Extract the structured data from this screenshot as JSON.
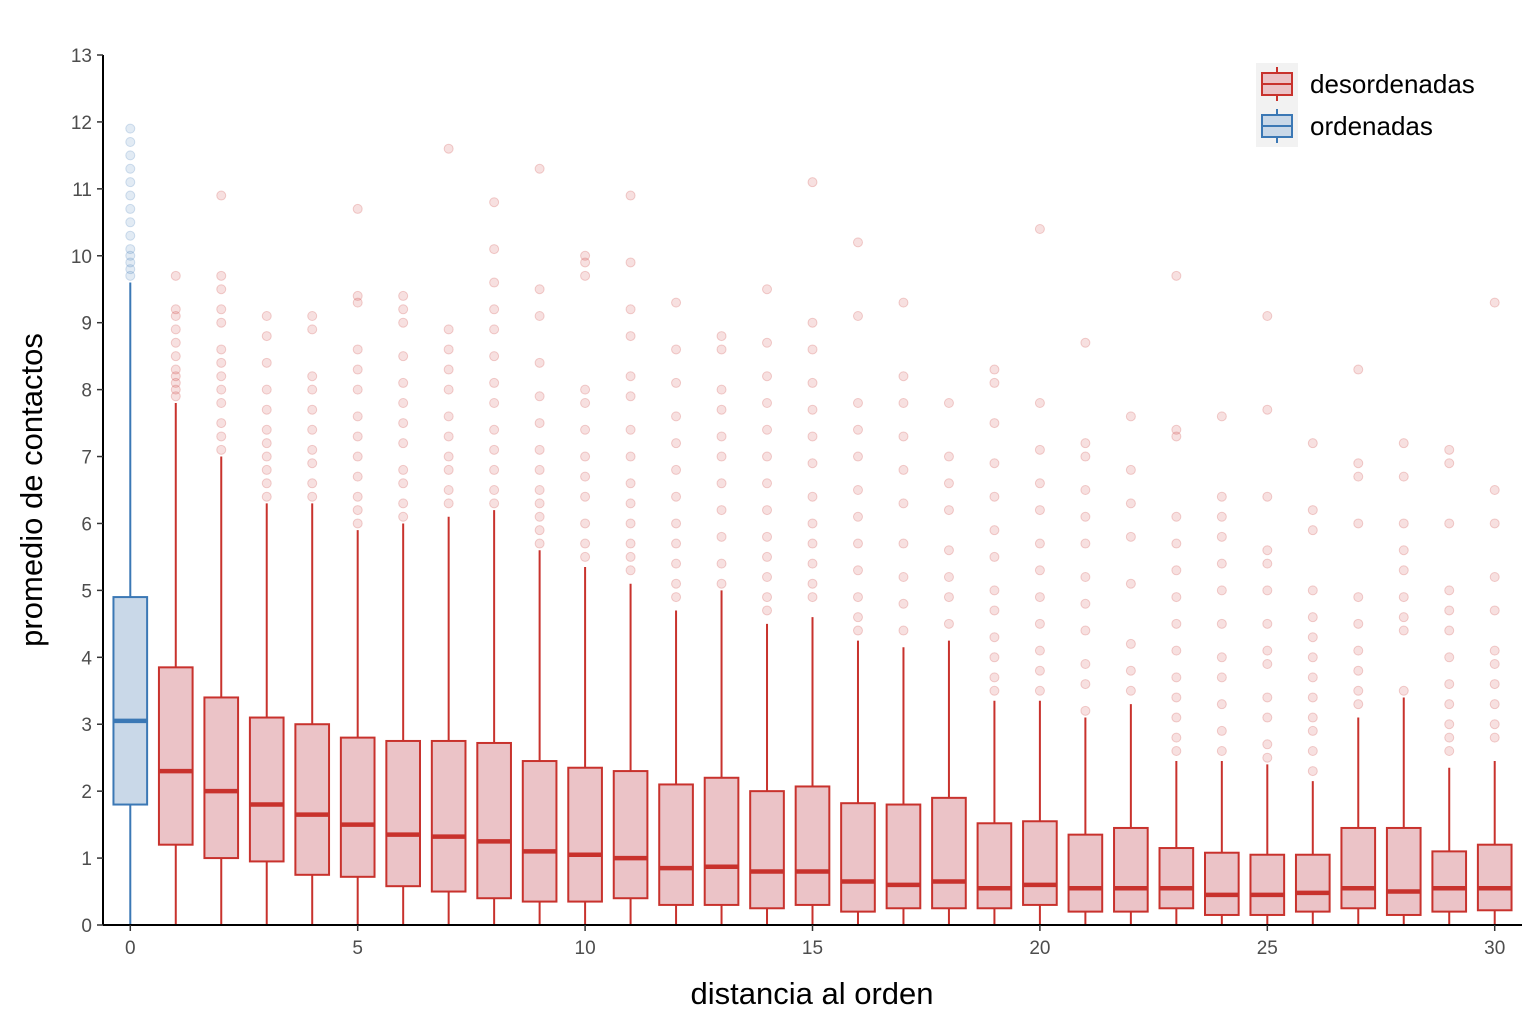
{
  "chart_data": {
    "type": "box",
    "xlabel": "distancia al orden",
    "ylabel": "promedio de contactos",
    "xlim": [
      -0.6,
      30.6
    ],
    "ylim": [
      0,
      13
    ],
    "x_ticks": [
      0,
      5,
      10,
      15,
      20,
      25,
      30
    ],
    "y_ticks": [
      0,
      1,
      2,
      3,
      4,
      5,
      6,
      7,
      8,
      9,
      10,
      11,
      12,
      13
    ],
    "grid": false,
    "legend_position": "top-right",
    "series": [
      {
        "name": "desordenadas",
        "color": "#c8322d",
        "fill": "#ebc3c7",
        "boxes": [
          {
            "x": 1,
            "q1": 1.2,
            "median": 2.3,
            "q3": 3.85,
            "whisker_low": 0,
            "whisker_high": 7.8,
            "outliers": [
              7.9,
              8.0,
              8.1,
              8.2,
              8.3,
              8.5,
              8.7,
              8.9,
              9.1,
              9.2,
              9.7
            ]
          },
          {
            "x": 2,
            "q1": 1.0,
            "median": 2.0,
            "q3": 3.4,
            "whisker_low": 0,
            "whisker_high": 7.0,
            "outliers": [
              7.1,
              7.3,
              7.5,
              7.8,
              8.0,
              8.2,
              8.4,
              8.6,
              9.0,
              9.2,
              9.5,
              9.7,
              10.9
            ]
          },
          {
            "x": 3,
            "q1": 0.95,
            "median": 1.8,
            "q3": 3.1,
            "whisker_low": 0,
            "whisker_high": 6.3,
            "outliers": [
              6.4,
              6.6,
              6.8,
              7.0,
              7.2,
              7.4,
              7.7,
              8.0,
              8.4,
              8.8,
              9.1
            ]
          },
          {
            "x": 4,
            "q1": 0.75,
            "median": 1.65,
            "q3": 3.0,
            "whisker_low": 0,
            "whisker_high": 6.3,
            "outliers": [
              6.4,
              6.6,
              6.9,
              7.1,
              7.4,
              7.7,
              8.0,
              8.2,
              8.9,
              9.1
            ]
          },
          {
            "x": 5,
            "q1": 0.72,
            "median": 1.5,
            "q3": 2.8,
            "whisker_low": 0,
            "whisker_high": 5.9,
            "outliers": [
              6.0,
              6.2,
              6.4,
              6.7,
              7.0,
              7.3,
              7.6,
              8.0,
              8.3,
              8.6,
              9.3,
              9.4,
              10.7
            ]
          },
          {
            "x": 6,
            "q1": 0.58,
            "median": 1.35,
            "q3": 2.75,
            "whisker_low": 0,
            "whisker_high": 6.0,
            "outliers": [
              6.1,
              6.3,
              6.6,
              6.8,
              7.2,
              7.5,
              7.8,
              8.1,
              8.5,
              9.0,
              9.2,
              9.4
            ]
          },
          {
            "x": 7,
            "q1": 0.5,
            "median": 1.32,
            "q3": 2.75,
            "whisker_low": 0,
            "whisker_high": 6.1,
            "outliers": [
              6.3,
              6.5,
              6.8,
              7.0,
              7.3,
              7.6,
              8.0,
              8.3,
              8.6,
              8.9,
              11.6
            ]
          },
          {
            "x": 8,
            "q1": 0.4,
            "median": 1.25,
            "q3": 2.72,
            "whisker_low": 0,
            "whisker_high": 6.2,
            "outliers": [
              6.3,
              6.5,
              6.8,
              7.1,
              7.4,
              7.8,
              8.1,
              8.5,
              8.9,
              9.2,
              9.6,
              10.1,
              10.8
            ]
          },
          {
            "x": 9,
            "q1": 0.35,
            "median": 1.1,
            "q3": 2.45,
            "whisker_low": 0,
            "whisker_high": 5.6,
            "outliers": [
              5.7,
              5.9,
              6.1,
              6.3,
              6.5,
              6.8,
              7.1,
              7.5,
              7.9,
              8.4,
              9.1,
              9.5,
              11.3
            ]
          },
          {
            "x": 10,
            "q1": 0.35,
            "median": 1.05,
            "q3": 2.35,
            "whisker_low": 0,
            "whisker_high": 5.35,
            "outliers": [
              5.5,
              5.7,
              6.0,
              6.4,
              6.7,
              7.0,
              7.4,
              7.8,
              8.0,
              9.7,
              9.9,
              10.0
            ]
          },
          {
            "x": 11,
            "q1": 0.4,
            "median": 1.0,
            "q3": 2.3,
            "whisker_low": 0,
            "whisker_high": 5.1,
            "outliers": [
              5.3,
              5.5,
              5.7,
              6.0,
              6.3,
              6.6,
              7.0,
              7.4,
              7.9,
              8.2,
              8.8,
              9.2,
              9.9,
              10.9
            ]
          },
          {
            "x": 12,
            "q1": 0.3,
            "median": 0.85,
            "q3": 2.1,
            "whisker_low": 0,
            "whisker_high": 4.7,
            "outliers": [
              4.9,
              5.1,
              5.4,
              5.7,
              6.0,
              6.4,
              6.8,
              7.2,
              7.6,
              8.1,
              8.6,
              9.3
            ]
          },
          {
            "x": 13,
            "q1": 0.3,
            "median": 0.87,
            "q3": 2.2,
            "whisker_low": 0,
            "whisker_high": 5.0,
            "outliers": [
              5.1,
              5.4,
              5.8,
              6.2,
              6.6,
              7.0,
              7.3,
              7.7,
              8.0,
              8.6,
              8.8
            ]
          },
          {
            "x": 14,
            "q1": 0.25,
            "median": 0.8,
            "q3": 2.0,
            "whisker_low": 0,
            "whisker_high": 4.5,
            "outliers": [
              4.7,
              4.9,
              5.2,
              5.5,
              5.8,
              6.2,
              6.6,
              7.0,
              7.4,
              7.8,
              8.2,
              8.7,
              9.5
            ]
          },
          {
            "x": 15,
            "q1": 0.3,
            "median": 0.8,
            "q3": 2.07,
            "whisker_low": 0,
            "whisker_high": 4.6,
            "outliers": [
              4.9,
              5.1,
              5.4,
              5.7,
              6.0,
              6.4,
              6.9,
              7.3,
              7.7,
              8.1,
              8.6,
              9.0,
              11.1
            ]
          },
          {
            "x": 16,
            "q1": 0.2,
            "median": 0.65,
            "q3": 1.82,
            "whisker_low": 0,
            "whisker_high": 4.25,
            "outliers": [
              4.4,
              4.6,
              4.9,
              5.3,
              5.7,
              6.1,
              6.5,
              7.0,
              7.4,
              7.8,
              9.1,
              10.2
            ]
          },
          {
            "x": 17,
            "q1": 0.25,
            "median": 0.6,
            "q3": 1.8,
            "whisker_low": 0,
            "whisker_high": 4.15,
            "outliers": [
              4.4,
              4.8,
              5.2,
              5.7,
              6.3,
              6.8,
              7.3,
              7.8,
              8.2,
              9.3
            ]
          },
          {
            "x": 18,
            "q1": 0.25,
            "median": 0.65,
            "q3": 1.9,
            "whisker_low": 0,
            "whisker_high": 4.25,
            "outliers": [
              4.5,
              4.9,
              5.2,
              5.6,
              6.2,
              6.6,
              7.0,
              7.8
            ]
          },
          {
            "x": 19,
            "q1": 0.25,
            "median": 0.55,
            "q3": 1.52,
            "whisker_low": 0,
            "whisker_high": 3.35,
            "outliers": [
              3.5,
              3.7,
              4.0,
              4.3,
              4.7,
              5.0,
              5.5,
              5.9,
              6.4,
              6.9,
              7.5,
              8.1,
              8.3
            ]
          },
          {
            "x": 20,
            "q1": 0.3,
            "median": 0.6,
            "q3": 1.55,
            "whisker_low": 0,
            "whisker_high": 3.35,
            "outliers": [
              3.5,
              3.8,
              4.1,
              4.5,
              4.9,
              5.3,
              5.7,
              6.2,
              6.6,
              7.1,
              7.8,
              10.4
            ]
          },
          {
            "x": 21,
            "q1": 0.2,
            "median": 0.55,
            "q3": 1.35,
            "whisker_low": 0,
            "whisker_high": 3.1,
            "outliers": [
              3.2,
              3.6,
              3.9,
              4.4,
              4.8,
              5.2,
              5.7,
              6.1,
              6.5,
              7.0,
              7.2,
              8.7
            ]
          },
          {
            "x": 22,
            "q1": 0.2,
            "median": 0.55,
            "q3": 1.45,
            "whisker_low": 0,
            "whisker_high": 3.3,
            "outliers": [
              3.5,
              3.8,
              4.2,
              5.1,
              5.8,
              6.3,
              6.8,
              7.6
            ]
          },
          {
            "x": 23,
            "q1": 0.25,
            "median": 0.55,
            "q3": 1.15,
            "whisker_low": 0,
            "whisker_high": 2.45,
            "outliers": [
              2.6,
              2.8,
              3.1,
              3.4,
              3.7,
              4.1,
              4.5,
              4.9,
              5.3,
              5.7,
              6.1,
              7.3,
              7.4,
              9.7
            ]
          },
          {
            "x": 24,
            "q1": 0.15,
            "median": 0.45,
            "q3": 1.08,
            "whisker_low": 0,
            "whisker_high": 2.45,
            "outliers": [
              2.6,
              2.9,
              3.3,
              3.7,
              4.0,
              4.5,
              5.0,
              5.4,
              5.8,
              6.1,
              6.4,
              7.6
            ]
          },
          {
            "x": 25,
            "q1": 0.15,
            "median": 0.45,
            "q3": 1.05,
            "whisker_low": 0,
            "whisker_high": 2.4,
            "outliers": [
              2.5,
              2.7,
              3.1,
              3.4,
              3.9,
              4.1,
              4.5,
              5.0,
              5.4,
              5.6,
              6.4,
              7.7,
              9.1
            ]
          },
          {
            "x": 26,
            "q1": 0.2,
            "median": 0.48,
            "q3": 1.05,
            "whisker_low": 0,
            "whisker_high": 2.15,
            "outliers": [
              2.3,
              2.6,
              2.9,
              3.1,
              3.4,
              3.7,
              4.0,
              4.3,
              4.6,
              5.0,
              5.9,
              6.2,
              7.2
            ]
          },
          {
            "x": 27,
            "q1": 0.25,
            "median": 0.55,
            "q3": 1.45,
            "whisker_low": 0,
            "whisker_high": 3.1,
            "outliers": [
              3.3,
              3.5,
              3.8,
              4.1,
              4.5,
              4.9,
              6.0,
              6.7,
              6.9,
              8.3
            ]
          },
          {
            "x": 28,
            "q1": 0.15,
            "median": 0.5,
            "q3": 1.45,
            "whisker_low": 0,
            "whisker_high": 3.4,
            "outliers": [
              3.5,
              4.4,
              4.6,
              4.9,
              5.3,
              5.6,
              6.0,
              6.7,
              7.2
            ]
          },
          {
            "x": 29,
            "q1": 0.2,
            "median": 0.55,
            "q3": 1.1,
            "whisker_low": 0,
            "whisker_high": 2.35,
            "outliers": [
              2.6,
              2.8,
              3.0,
              3.3,
              3.6,
              4.0,
              4.4,
              4.7,
              5.0,
              6.0,
              6.9,
              7.1
            ]
          },
          {
            "x": 30,
            "q1": 0.22,
            "median": 0.55,
            "q3": 1.2,
            "whisker_low": 0,
            "whisker_high": 2.45,
            "outliers": [
              2.8,
              3.0,
              3.3,
              3.6,
              3.9,
              4.1,
              4.7,
              5.2,
              6.0,
              6.5,
              9.3
            ]
          }
        ]
      },
      {
        "name": "ordenadas",
        "color": "#3b78b5",
        "fill": "#c9d8e8",
        "boxes": [
          {
            "x": 0,
            "q1": 1.8,
            "median": 3.05,
            "q3": 4.9,
            "whisker_low": 0,
            "whisker_high": 9.6,
            "outliers": [
              9.7,
              9.8,
              9.9,
              10.0,
              10.1,
              10.3,
              10.5,
              10.7,
              10.9,
              11.1,
              11.3,
              11.5,
              11.7,
              11.9
            ]
          }
        ]
      }
    ]
  }
}
